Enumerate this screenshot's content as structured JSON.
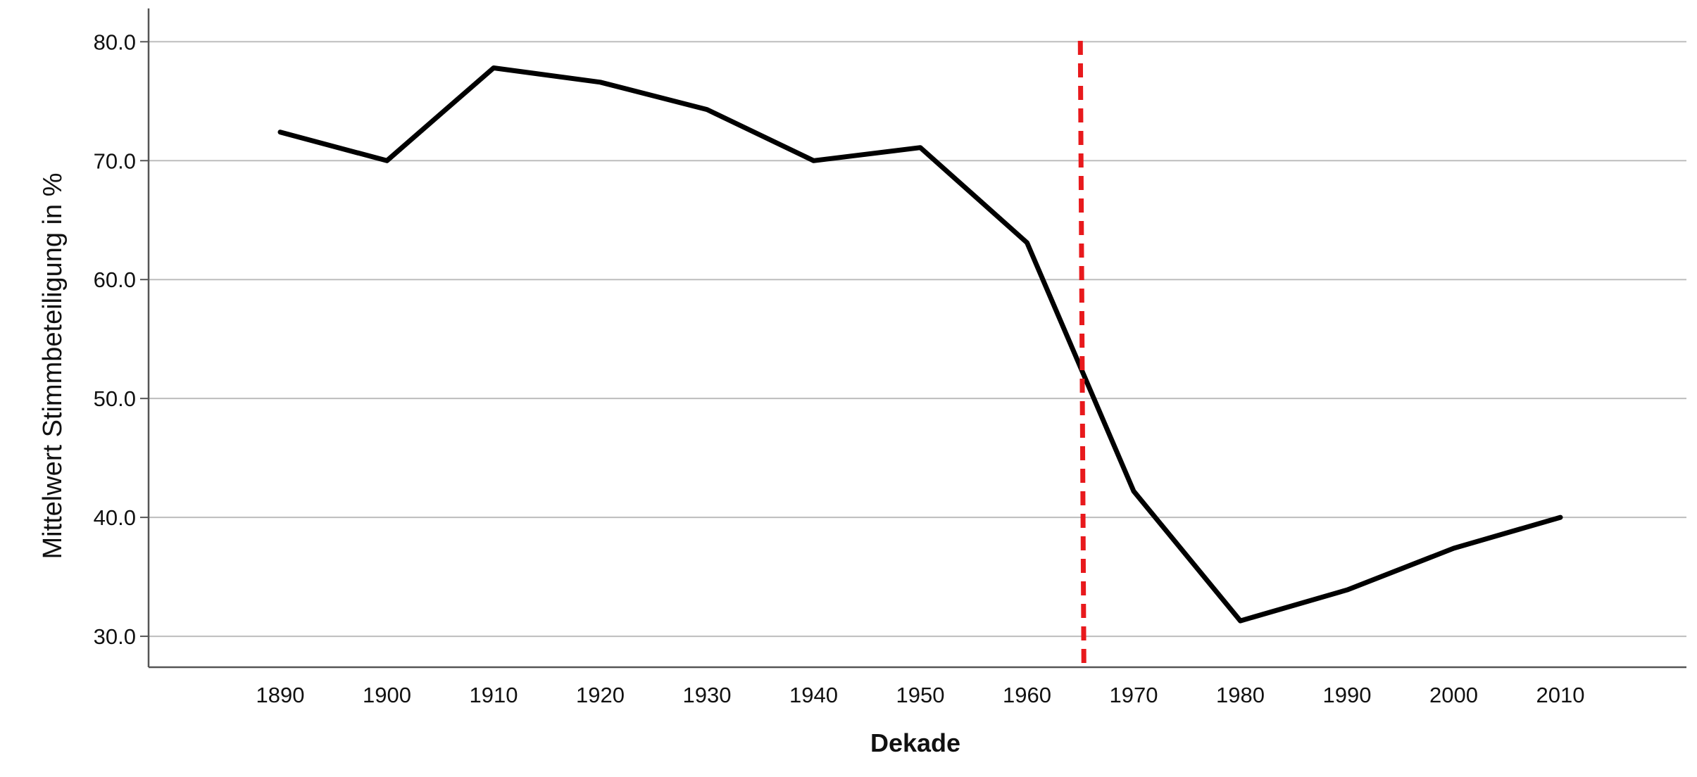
{
  "chart_data": {
    "type": "line",
    "title": "",
    "xlabel": "Dekade",
    "ylabel": "Mittelwert Stimmbeteiligung in %",
    "categories": [
      "1890",
      "1900",
      "1910",
      "1920",
      "1930",
      "1940",
      "1950",
      "1960",
      "1970",
      "1980",
      "1990",
      "2000",
      "2010"
    ],
    "series": [
      {
        "values": [
          72.4,
          70.0,
          77.8,
          76.6,
          74.3,
          70.0,
          71.1,
          63.1,
          42.2,
          31.3,
          33.9,
          37.4,
          40.0
        ]
      }
    ],
    "ylim": [
      27.4,
      82.8
    ],
    "yticks": [
      "30.0",
      "40.0",
      "50.0",
      "60.0",
      "70.0",
      "80.0"
    ],
    "grid": true,
    "reference_line": {
      "x": 1965,
      "style": "dashed",
      "color": "#e8191c"
    },
    "line_color": "#000000"
  }
}
